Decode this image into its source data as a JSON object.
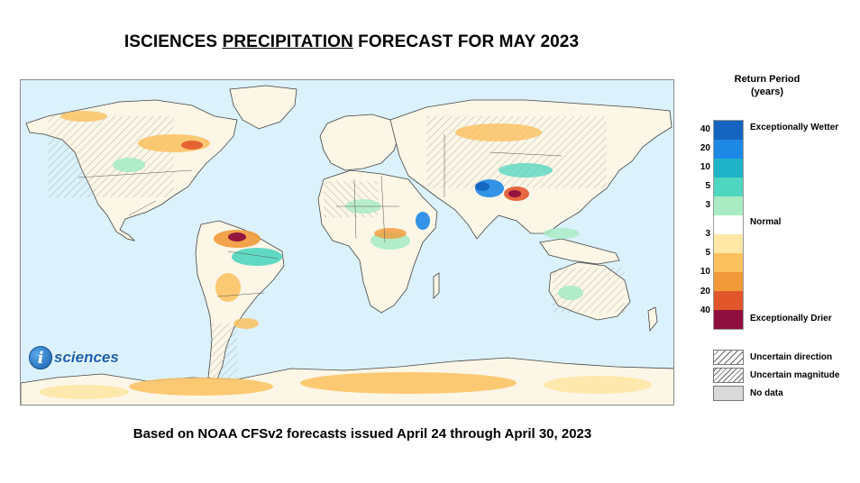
{
  "title": {
    "before": "ISCIENCES ",
    "underlined": "PRECIPITATION",
    "after": " FORECAST FOR MAY 2023"
  },
  "footer": "Based on NOAA CFSv2 forecasts issued April 24 through April 30, 2023",
  "logo": {
    "mark": "i",
    "text": "sciences"
  },
  "legend": {
    "title_line1": "Return Period",
    "title_line2": "(years)",
    "wetter_label": "Exceptionally Wetter",
    "normal_label": "Normal",
    "drier_label": "Exceptionally Drier",
    "ticks": [
      "40",
      "20",
      "10",
      "5",
      "3",
      "3",
      "5",
      "10",
      "20",
      "40"
    ],
    "colors": [
      "#1565c0",
      "#1e88e5",
      "#1fb3c8",
      "#4fd6c0",
      "#a9ecc4",
      "#ffffff",
      "#ffe7a6",
      "#fbc15e",
      "#f29a3a",
      "#e2562c",
      "#8e0f3e"
    ],
    "swatches": [
      {
        "label": "Uncertain direction",
        "pattern": "diag-single"
      },
      {
        "label": "Uncertain magnitude",
        "pattern": "diag-double"
      },
      {
        "label": "No data",
        "pattern": "gray"
      }
    ]
  },
  "map": {
    "ocean_color": "#dbf1fb",
    "land_color": "#fbf6e6",
    "coast_color": "#444444"
  }
}
